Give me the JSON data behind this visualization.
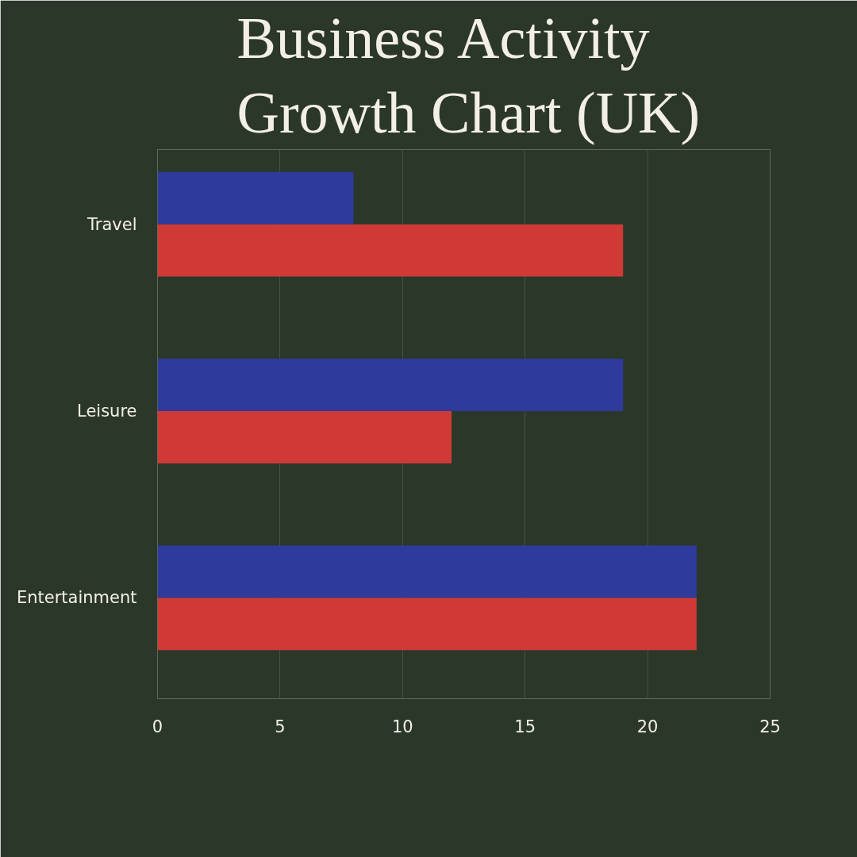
{
  "chart_data": {
    "type": "bar",
    "orientation": "horizontal",
    "title": "Business Activity Growth Chart (UK)",
    "categories": [
      "Travel",
      "Leisure",
      "Entertainment"
    ],
    "series": [
      {
        "color": "#2e3a9c",
        "values": [
          8,
          19,
          22
        ]
      },
      {
        "color": "#cf3a36",
        "values": [
          19,
          12,
          22
        ]
      }
    ],
    "xlim": [
      0,
      25
    ],
    "xticks": [
      0,
      5,
      10,
      15,
      20,
      25
    ],
    "grid": "x"
  }
}
